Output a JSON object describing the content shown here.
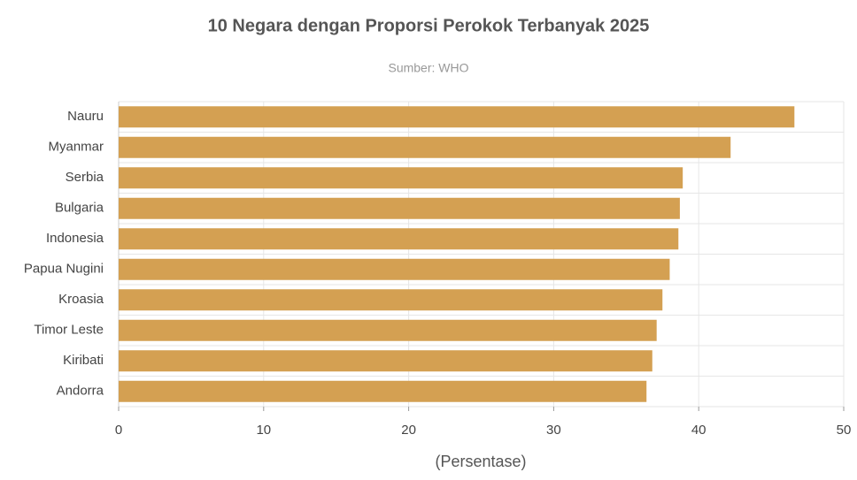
{
  "chart_data": {
    "type": "barh",
    "title": "10 Negara dengan Proporsi Perokok Terbanyak 2025",
    "subtitle": "Sumber: WHO",
    "x_label": "(Persentase)",
    "categories": [
      "Nauru",
      "Myanmar",
      "Serbia",
      "Bulgaria",
      "Indonesia",
      "Papua Nugini",
      "Kroasia",
      "Timor Leste",
      "Kiribati",
      "Andorra"
    ],
    "values": [
      46.6,
      42.2,
      38.9,
      38.7,
      38.6,
      38.0,
      37.5,
      37.1,
      36.8,
      36.4
    ],
    "color": "#d4a052",
    "xlim": [
      0,
      50
    ],
    "xticks": [
      0,
      10,
      20,
      30,
      40,
      50
    ],
    "grid": true
  }
}
